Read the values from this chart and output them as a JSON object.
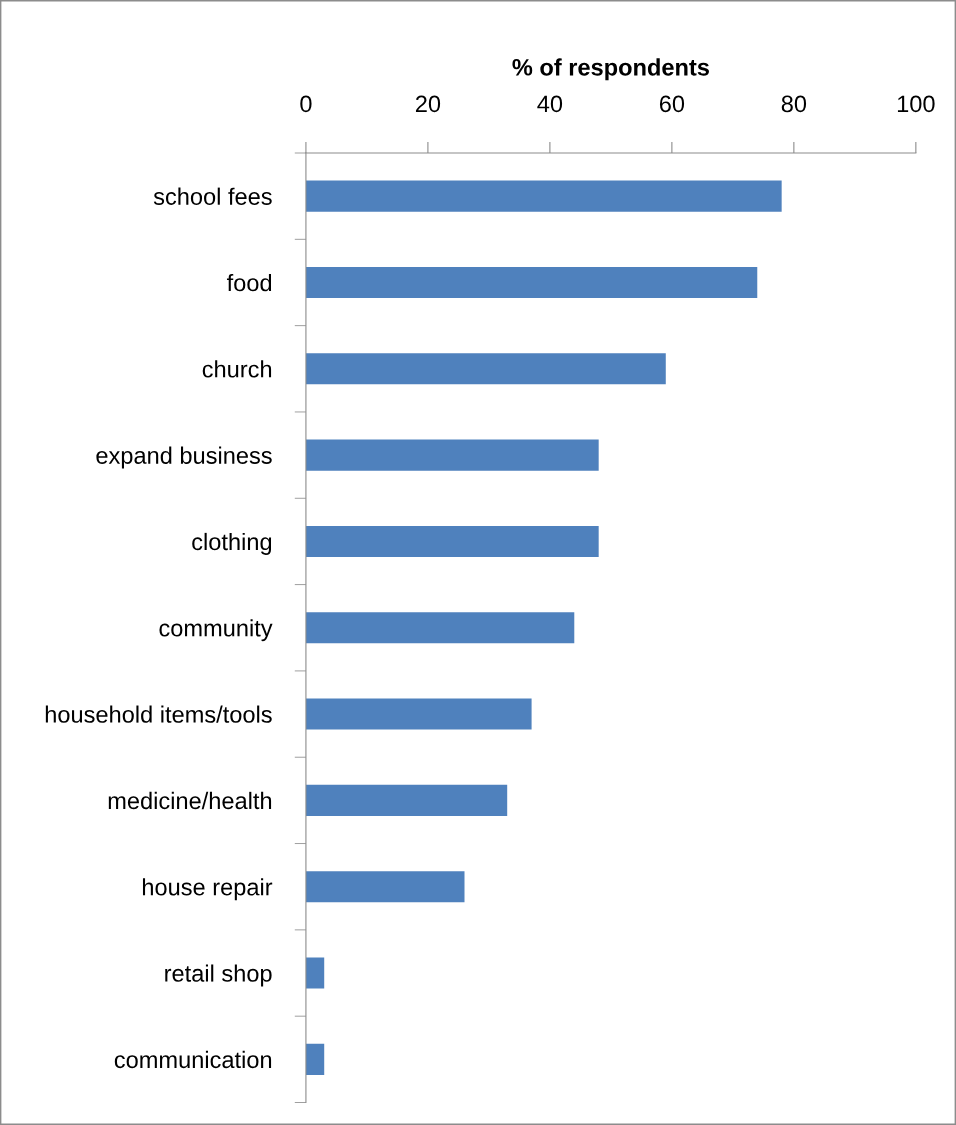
{
  "chart_data": {
    "type": "bar",
    "orientation": "horizontal",
    "xlabel": "% of respondents",
    "categories": [
      "school fees",
      "food",
      "church",
      "expand business",
      "clothing",
      "community",
      "household items/tools",
      "medicine/health",
      "house repair",
      "retail shop",
      "communication"
    ],
    "values": [
      78,
      74,
      59,
      48,
      48,
      44,
      37,
      33,
      26,
      3,
      3
    ],
    "color": "#4f81bd",
    "xlim": [
      0,
      100
    ],
    "xticks": [
      0,
      20,
      40,
      60,
      80,
      100
    ],
    "grid": false,
    "legend": false
  }
}
